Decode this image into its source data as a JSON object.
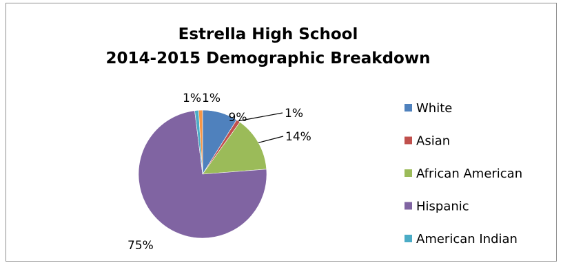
{
  "chart_data": {
    "type": "pie",
    "title": "Estrella High School",
    "subtitle": "2014-2015 Demographic Breakdown",
    "legend_position": "right",
    "slices": [
      {
        "name": "White",
        "value": 9,
        "label": "9%",
        "color": "#4F81BD"
      },
      {
        "name": "Asian",
        "value": 1,
        "label": "1%",
        "color": "#C0504D"
      },
      {
        "name": "African American",
        "value": 14,
        "label": "14%",
        "color": "#9BBB59"
      },
      {
        "name": "Hispanic",
        "value": 75,
        "label": "75%",
        "color": "#8064A2"
      },
      {
        "name": "American Indian",
        "value": 1,
        "label": "1%",
        "color": "#4BACC6"
      },
      {
        "name": "",
        "value": 1,
        "label": "1%",
        "color": "#F79646"
      }
    ]
  }
}
